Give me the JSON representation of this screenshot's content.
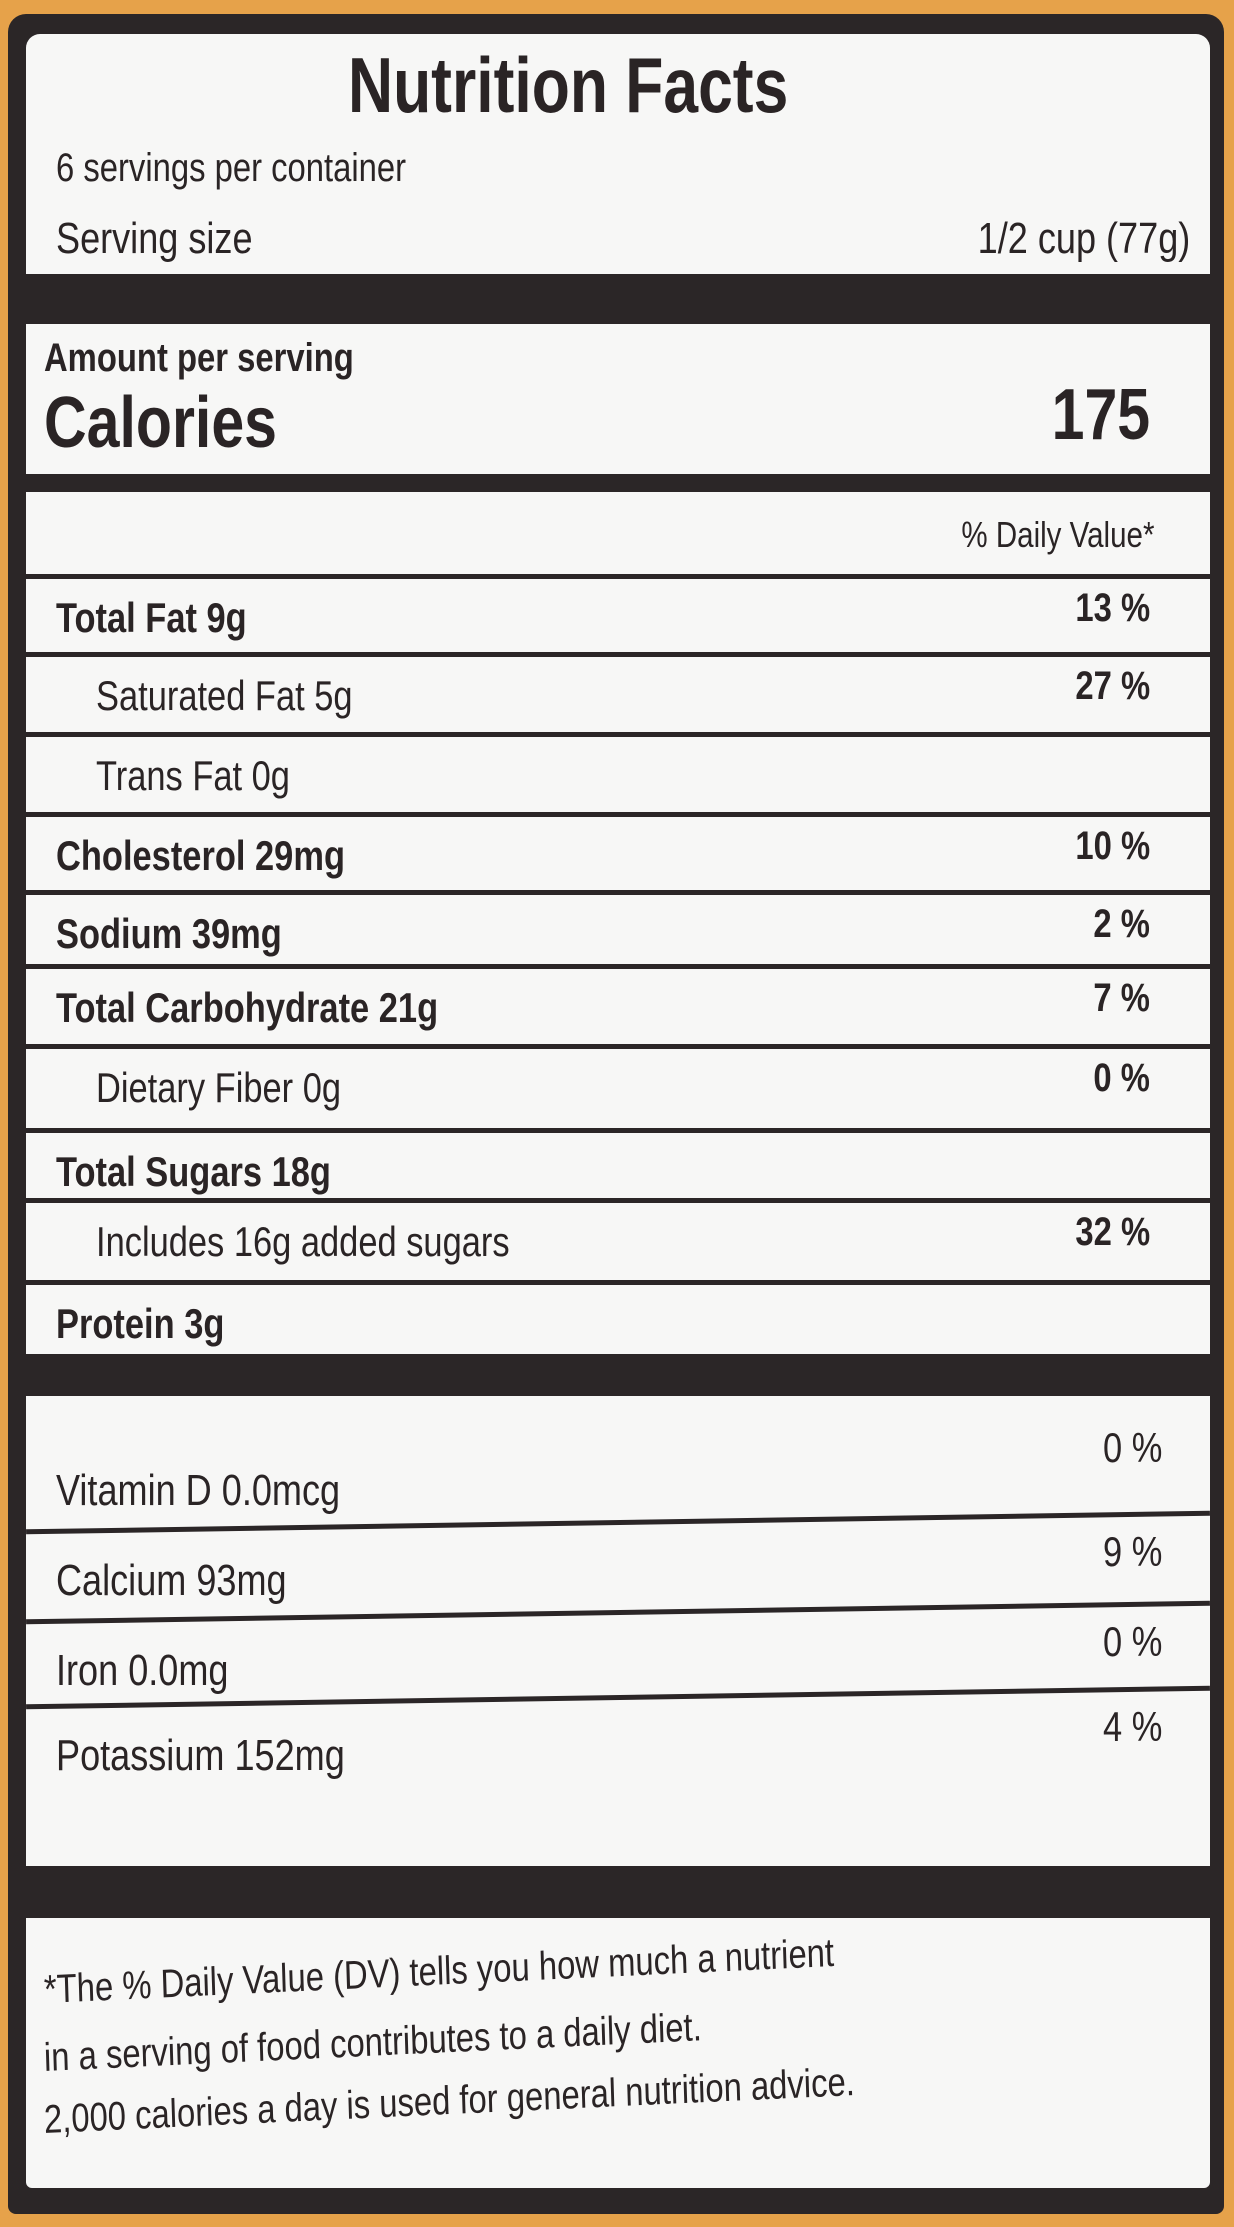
{
  "title": "Nutrition Facts",
  "servings_per_container": "6 servings per container",
  "serving_size": {
    "label": "Serving size",
    "value": "1/2 cup (77g)"
  },
  "amount_per_serving": "Amount per serving",
  "calories": {
    "label": "Calories",
    "value": "175"
  },
  "daily_value_header": "% Daily Value*",
  "nutrients": [
    {
      "label": "Total Fat 9g",
      "dv": "13 %",
      "bold": true,
      "indent": false
    },
    {
      "label": "Saturated Fat 5g",
      "dv": "27 %",
      "bold": false,
      "indent": true
    },
    {
      "label": "Trans Fat 0g",
      "dv": "",
      "bold": false,
      "indent": true
    },
    {
      "label": "Cholesterol 29mg",
      "dv": "10 %",
      "bold": true,
      "indent": false
    },
    {
      "label": "Sodium 39mg",
      "dv": "2 %",
      "bold": true,
      "indent": false
    },
    {
      "label": "Total Carbohydrate 21g",
      "dv": "7 %",
      "bold": true,
      "indent": false
    },
    {
      "label": "Dietary Fiber 0g",
      "dv": "0 %",
      "bold": false,
      "indent": true
    },
    {
      "label": "Total Sugars 18g",
      "dv": "",
      "bold": true,
      "indent": false
    },
    {
      "label": "Includes 16g added sugars",
      "dv": "32 %",
      "bold": false,
      "indent": true
    },
    {
      "label": "Protein 3g",
      "dv": "",
      "bold": true,
      "indent": false
    }
  ],
  "vitamins": [
    {
      "label": "Vitamin D 0.0mcg",
      "dv": "0 %"
    },
    {
      "label": "Calcium 93mg",
      "dv": "9 %"
    },
    {
      "label": "Iron 0.0mg",
      "dv": "0 %"
    },
    {
      "label": "Potassium 152mg",
      "dv": "4 %"
    }
  ],
  "footnote": [
    "*The % Daily Value (DV) tells you how much a nutrient",
    "in a serving of food contributes to a daily diet.",
    "2,000 calories a day is used for general nutrition advice."
  ],
  "colors": {
    "background": "#e6a24a",
    "ink": "#2b2627",
    "panel": "#f7f7f6"
  }
}
